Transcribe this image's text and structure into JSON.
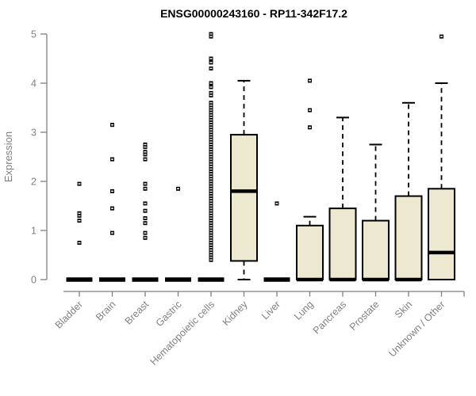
{
  "chart_data": {
    "type": "boxplot",
    "title": "ENSG00000243160 - RP11-342F17.2",
    "xlabel": "",
    "ylabel": "Expression",
    "ylim": [
      0,
      5
    ],
    "yticks": [
      0,
      1,
      2,
      3,
      4,
      5
    ],
    "grid": false,
    "legend": "none",
    "axis_color": "#808080",
    "label_color": "#808080",
    "title_color": "#000000",
    "box_fill": "#EDE8D0",
    "box_stroke": "#000000",
    "outlier_color": "#000000",
    "categories": [
      "Bladder",
      "Brain",
      "Breast",
      "Gastric",
      "Hematopoietic cells",
      "Kidney",
      "Liver",
      "Lung",
      "Pancreas",
      "Prostate",
      "Skin",
      "Unknown / Other"
    ],
    "boxes": [
      {
        "category": "Bladder",
        "q1": 0,
        "median": 0,
        "q3": 0,
        "whisker_low": 0,
        "whisker_high": 0,
        "outliers": [
          0.75,
          1.2,
          1.3,
          1.35,
          1.95
        ]
      },
      {
        "category": "Brain",
        "q1": 0,
        "median": 0,
        "q3": 0,
        "whisker_low": 0,
        "whisker_high": 0,
        "outliers": [
          0.95,
          1.45,
          1.8,
          2.45,
          3.15
        ]
      },
      {
        "category": "Breast",
        "q1": 0,
        "median": 0,
        "q3": 0,
        "whisker_low": 0,
        "whisker_high": 0,
        "outliers": [
          0.85,
          0.95,
          1.15,
          1.25,
          1.4,
          1.55,
          1.85,
          1.95,
          2.45,
          2.55,
          2.6,
          2.7,
          2.75
        ]
      },
      {
        "category": "Gastric",
        "q1": 0,
        "median": 0,
        "q3": 0,
        "whisker_low": 0,
        "whisker_high": 0,
        "outliers": [
          1.85
        ]
      },
      {
        "category": "Hematopoietic cells",
        "q1": 0,
        "median": 0,
        "q3": 0,
        "whisker_low": 0,
        "whisker_high": 0,
        "outliers": [
          5.0,
          4.95,
          4.5,
          4.42,
          4.3,
          4.0,
          3.92,
          3.8,
          3.75,
          3.6,
          3.55,
          3.5,
          3.45,
          3.4,
          3.35,
          3.3,
          3.25,
          3.2,
          3.15,
          3.1,
          3.05,
          3.0,
          2.95,
          2.9,
          2.85,
          2.8,
          2.75,
          2.7,
          2.65,
          2.6,
          2.55,
          2.5,
          2.45,
          2.4,
          2.35,
          2.3,
          2.25,
          2.2,
          2.15,
          2.1,
          2.05,
          2.0,
          1.95,
          1.9,
          1.85,
          1.8,
          1.75,
          1.7,
          1.65,
          1.6,
          1.55,
          1.5,
          1.45,
          1.4,
          1.35,
          1.3,
          1.25,
          1.2,
          1.15,
          1.1,
          1.05,
          1.0,
          0.95,
          0.9,
          0.85,
          0.8,
          0.75,
          0.7,
          0.65,
          0.6,
          0.55,
          0.5,
          0.45,
          0.4
        ]
      },
      {
        "category": "Kidney",
        "q1": 0.38,
        "median": 1.8,
        "q3": 2.95,
        "whisker_low": 0,
        "whisker_high": 4.05,
        "outliers": []
      },
      {
        "category": "Liver",
        "q1": 0,
        "median": 0,
        "q3": 0,
        "whisker_low": 0,
        "whisker_high": 0,
        "outliers": [
          1.55
        ]
      },
      {
        "category": "Lung",
        "q1": 0,
        "median": 0,
        "q3": 1.1,
        "whisker_low": 0,
        "whisker_high": 1.28,
        "outliers": [
          3.1,
          3.45,
          4.05
        ]
      },
      {
        "category": "Pancreas",
        "q1": 0,
        "median": 0,
        "q3": 1.45,
        "whisker_low": 0,
        "whisker_high": 3.3,
        "outliers": []
      },
      {
        "category": "Prostate",
        "q1": 0,
        "median": 0,
        "q3": 1.2,
        "whisker_low": 0,
        "whisker_high": 2.75,
        "outliers": []
      },
      {
        "category": "Skin",
        "q1": 0,
        "median": 0,
        "q3": 1.7,
        "whisker_low": 0,
        "whisker_high": 3.6,
        "outliers": []
      },
      {
        "category": "Unknown / Other",
        "q1": 0,
        "median": 0.55,
        "q3": 1.85,
        "whisker_low": 0,
        "whisker_high": 4.0,
        "outliers": [
          4.95
        ]
      }
    ]
  }
}
